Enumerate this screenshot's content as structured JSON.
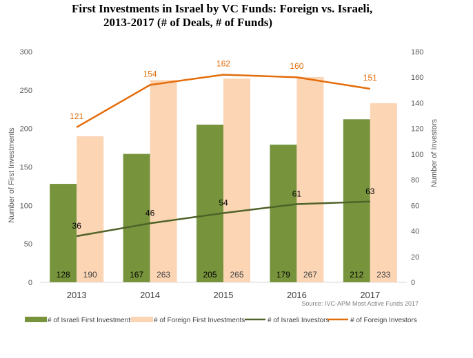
{
  "chart_data": {
    "type": "bar",
    "title_lines": [
      "First Investments in Israel by VC Funds: Foreign vs. Israeli,",
      "2013-2017 (# of Deals, # of Funds)"
    ],
    "categories": [
      "2013",
      "2014",
      "2015",
      "2016",
      "2017"
    ],
    "ylabel_left": "Number of First Investments",
    "ylabel_right": "Number of Investors",
    "ylim_left": [
      0,
      300
    ],
    "ylim_right": [
      0,
      180
    ],
    "yticks_left": [
      "0",
      "50",
      "100",
      "150",
      "200",
      "250",
      "300"
    ],
    "yticks_right": [
      "0",
      "20",
      "40",
      "60",
      "80",
      "100",
      "120",
      "140",
      "160",
      "180"
    ],
    "grid": false,
    "legend_position": "bottom",
    "source": "Source: IVC-APM Most Active Funds 2017",
    "series": [
      {
        "name": "# of Israeli First Investments",
        "kind": "bar",
        "axis": "left",
        "color": "#77943c",
        "values": [
          128,
          167,
          205,
          179,
          212
        ],
        "labels": [
          "128",
          "167",
          "205",
          "179",
          "212"
        ]
      },
      {
        "name": "# of Foreign First Investments",
        "kind": "bar",
        "axis": "left",
        "color": "#fcd5b5",
        "values": [
          190,
          263,
          265,
          267,
          233
        ],
        "labels": [
          "190",
          "263",
          "265",
          "267",
          "233"
        ]
      },
      {
        "name": "# of Israeli Investors",
        "kind": "line",
        "axis": "right",
        "color": "#4f6228",
        "values": [
          36,
          46,
          54,
          61,
          63
        ],
        "labels": [
          "36",
          "46",
          "54",
          "61",
          "63"
        ]
      },
      {
        "name": "# of Foreign Investors",
        "kind": "line",
        "axis": "right",
        "color": "#e46c0a",
        "values": [
          121,
          154,
          162,
          160,
          151
        ],
        "labels": [
          "121",
          "154",
          "162",
          "160",
          "151"
        ]
      }
    ]
  }
}
